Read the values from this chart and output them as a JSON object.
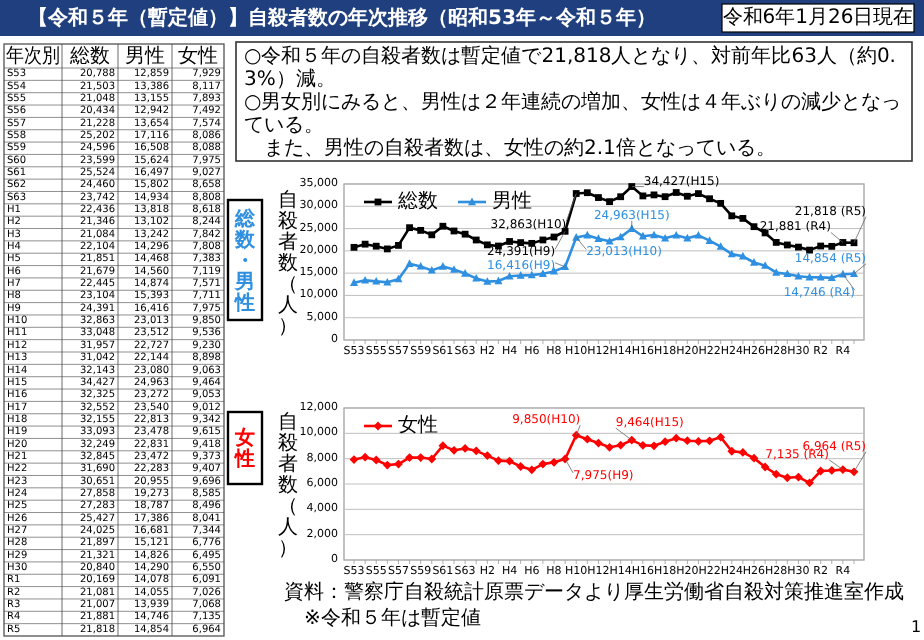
{
  "chart_data": [
    {
      "type": "other",
      "xlabel": "年次別",
      "categories": [
        "S53",
        "S54",
        "S55",
        "S56",
        "S57",
        "S58",
        "S59",
        "S60",
        "S61",
        "S62",
        "S63",
        "H1",
        "H2",
        "H3",
        "H4",
        "H5",
        "H6",
        "H7",
        "H8",
        "H9",
        "H10",
        "H11",
        "H12",
        "H13",
        "H14",
        "H15",
        "H16",
        "H17",
        "H18",
        "H19",
        "H20",
        "H21",
        "H22",
        "H23",
        "H24",
        "H25",
        "H26",
        "H27",
        "H28",
        "H29",
        "H30",
        "R1",
        "R2",
        "R3",
        "R4",
        "R5"
      ],
      "series": [
        {
          "name": "総数",
          "values": [
            20788,
            21503,
            21048,
            20434,
            21228,
            25202,
            24596,
            23599,
            25524,
            24460,
            23742,
            22436,
            21346,
            21084,
            22104,
            21851,
            21679,
            22445,
            23104,
            24391,
            32863,
            33048,
            31957,
            31042,
            32143,
            34427,
            32325,
            32552,
            32155,
            33093,
            32249,
            32845,
            31690,
            30651,
            27858,
            27283,
            25427,
            24025,
            21897,
            21321,
            20840,
            20169,
            21081,
            21007,
            21881,
            21818
          ],
          "value_labels": [
            "20,788",
            "21,503",
            "21,048",
            "20,434",
            "21,228",
            "25,202",
            "24,596",
            "23,599",
            "25,524",
            "24,460",
            "23,742",
            "22,436",
            "21,346",
            "21,084",
            "22,104",
            "21,851",
            "21,679",
            "22,445",
            "23,104",
            "24,391",
            "32,863",
            "33,048",
            "31,957",
            "31,042",
            "32,143",
            "34,427",
            "32,325",
            "32,552",
            "32,155",
            "33,093",
            "32,249",
            "32,845",
            "31,690",
            "30,651",
            "27,858",
            "27,283",
            "25,427",
            "24,025",
            "21,897",
            "21,321",
            "20,840",
            "20,169",
            "21,081",
            "21,007",
            "21,881",
            "21,818"
          ]
        },
        {
          "name": "男性",
          "values": [
            12859,
            13386,
            13155,
            12942,
            13654,
            17116,
            16508,
            15624,
            16497,
            15802,
            14934,
            13818,
            13102,
            13242,
            14296,
            14468,
            14560,
            14874,
            15393,
            16416,
            23013,
            23512,
            22727,
            22144,
            23080,
            24963,
            23272,
            23540,
            22813,
            23478,
            22831,
            23472,
            22283,
            20955,
            19273,
            18787,
            17386,
            16681,
            15121,
            14826,
            14290,
            14078,
            14055,
            13939,
            14746,
            14854
          ],
          "value_labels": [
            "12,859",
            "13,386",
            "13,155",
            "12,942",
            "13,654",
            "17,116",
            "16,508",
            "15,624",
            "16,497",
            "15,802",
            "14,934",
            "13,818",
            "13,102",
            "13,242",
            "14,296",
            "14,468",
            "14,560",
            "14,874",
            "15,393",
            "16,416",
            "23,013",
            "23,512",
            "22,727",
            "22,144",
            "23,080",
            "24,963",
            "23,272",
            "23,540",
            "22,813",
            "23,478",
            "22,831",
            "23,472",
            "22,283",
            "20,955",
            "19,273",
            "18,787",
            "17,386",
            "16,681",
            "15,121",
            "14,826",
            "14,290",
            "14,078",
            "14,055",
            "13,939",
            "14,746",
            "14,854"
          ]
        },
        {
          "name": "女性",
          "values": [
            7929,
            8117,
            7893,
            7492,
            7574,
            8086,
            8088,
            7975,
            9027,
            8658,
            8808,
            8618,
            8244,
            7842,
            7808,
            7383,
            7119,
            7571,
            7711,
            7975,
            9850,
            9536,
            9230,
            8898,
            9063,
            9464,
            9053,
            9012,
            9342,
            9615,
            9418,
            9373,
            9407,
            9696,
            8585,
            8496,
            8041,
            7344,
            6776,
            6495,
            6550,
            6091,
            7026,
            7068,
            7135,
            6964
          ],
          "value_labels": [
            "7,929",
            "8,117",
            "7,893",
            "7,492",
            "7,574",
            "8,086",
            "8,088",
            "7,975",
            "9,027",
            "8,658",
            "8,808",
            "8,618",
            "8,244",
            "7,842",
            "7,808",
            "7,383",
            "7,119",
            "7,571",
            "7,711",
            "7,975",
            "9,850",
            "9,536",
            "9,230",
            "8,898",
            "9,063",
            "9,464",
            "9,053",
            "9,012",
            "9,342",
            "9,615",
            "9,418",
            "9,373",
            "9,407",
            "9,696",
            "8,585",
            "8,496",
            "8,041",
            "7,344",
            "6,776",
            "6,495",
            "6,550",
            "6,091",
            "7,026",
            "7,068",
            "7,135",
            "6,964"
          ]
        }
      ]
    },
    {
      "type": "line",
      "title": "【令和５年（暫定値）】自殺者数の年次推移（昭和53年～令和５年）",
      "subtitle": "総数・男性",
      "ylabel": "自殺者数（人）",
      "categories": [
        "S53",
        null,
        "S55",
        null,
        "S57",
        null,
        "S59",
        null,
        "S61",
        null,
        "S63",
        null,
        "H2",
        null,
        "H4",
        null,
        "H6",
        null,
        "H8",
        null,
        "H10",
        null,
        "H12",
        null,
        "H14",
        null,
        "H16",
        null,
        "H18",
        null,
        "H20",
        null,
        "H22",
        null,
        "H24",
        null,
        "H26",
        null,
        "H28",
        null,
        "H30",
        null,
        "R2",
        null,
        "R4",
        null
      ],
      "series": [
        {
          "name": "総数",
          "color": "#000000",
          "marker": "square",
          "values": [
            20788,
            21503,
            21048,
            20434,
            21228,
            25202,
            24596,
            23599,
            25524,
            24460,
            23742,
            22436,
            21346,
            21084,
            22104,
            21851,
            21679,
            22445,
            23104,
            24391,
            32863,
            33048,
            31957,
            31042,
            32143,
            34427,
            32325,
            32552,
            32155,
            33093,
            32249,
            32845,
            31690,
            30651,
            27858,
            27283,
            25427,
            24025,
            21897,
            21321,
            20840,
            20169,
            21081,
            21007,
            21881,
            21818
          ]
        },
        {
          "name": "男性",
          "color": "#2f8fe0",
          "marker": "triangle",
          "values": [
            12859,
            13386,
            13155,
            12942,
            13654,
            17116,
            16508,
            15624,
            16497,
            15802,
            14934,
            13818,
            13102,
            13242,
            14296,
            14468,
            14560,
            14874,
            15393,
            16416,
            23013,
            23512,
            22727,
            22144,
            23080,
            24963,
            23272,
            23540,
            22813,
            23478,
            22831,
            23472,
            22283,
            20955,
            19273,
            18787,
            17386,
            16681,
            15121,
            14826,
            14290,
            14078,
            14055,
            13939,
            14746,
            14854
          ]
        }
      ],
      "ylim": [
        0,
        35000
      ],
      "yticks": [
        0,
        {
          "value": 5000,
          "label": "5,000"
        },
        {
          "value": 10000,
          "label": "10,000"
        },
        {
          "value": 15000,
          "label": "15,000"
        },
        {
          "value": 20000,
          "label": "20,000"
        },
        {
          "value": 25000,
          "label": "25,000"
        },
        {
          "value": 30000,
          "label": "30,000"
        },
        {
          "value": 35000,
          "label": "35,000"
        }
      ],
      "grid": "y",
      "legend": "top left",
      "annotations": [
        "32,863(H10)",
        "34,427(H15)",
        "24,391(H9)",
        "21,818 (R5)",
        "21,881 (R4)",
        "24,963(H15)",
        "16,416(H9)",
        "23,013(H10)",
        "14,854 (R5)",
        "14,746 (R4)",
        "令和6年1月26日現在",
        "○令和５年の自殺者数は暫定値で21,818人となり、対前年比63人（約0.3%）減。",
        "○男女別にみると、男性は２年連続の増加、女性は４年ぶりの減少となっている。",
        "　また、男性の自殺者数は、女性の約2.1倍となっている。"
      ]
    },
    {
      "type": "line",
      "subtitle": "女性",
      "ylabel": "自殺者数（人）",
      "categories": [
        "S53",
        null,
        "S55",
        null,
        "S57",
        null,
        "S59",
        null,
        "S61",
        null,
        "S63",
        null,
        "H2",
        null,
        "H4",
        null,
        "H6",
        null,
        "H8",
        null,
        "H10",
        null,
        "H12",
        null,
        "H14",
        null,
        "H16",
        null,
        "H18",
        null,
        "H20",
        null,
        "H22",
        null,
        "H24",
        null,
        "H26",
        null,
        "H28",
        null,
        "H30",
        null,
        "R2",
        null,
        "R4",
        null
      ],
      "series": [
        {
          "name": "女性",
          "color": "#ff0000",
          "marker": "diamond",
          "values": [
            7929,
            8117,
            7893,
            7492,
            7574,
            8086,
            8088,
            7975,
            9027,
            8658,
            8808,
            8618,
            8244,
            7842,
            7808,
            7383,
            7119,
            7571,
            7711,
            7975,
            9850,
            9536,
            9230,
            8898,
            9063,
            9464,
            9053,
            9012,
            9342,
            9615,
            9418,
            9373,
            9407,
            9696,
            8585,
            8496,
            8041,
            7344,
            6776,
            6495,
            6550,
            6091,
            7026,
            7068,
            7135,
            6964
          ]
        }
      ],
      "ylim": [
        0,
        12000
      ],
      "yticks": [
        0,
        {
          "value": 2000,
          "label": "2,000"
        },
        {
          "value": 4000,
          "label": "4,000"
        },
        {
          "value": 6000,
          "label": "6,000"
        },
        {
          "value": 8000,
          "label": "8,000"
        },
        {
          "value": 10000,
          "label": "10,000"
        },
        {
          "value": 12000,
          "label": "12,000"
        }
      ],
      "grid": "y",
      "legend": "top left",
      "annotations": [
        "9,850(H10)",
        "9,464(H15)",
        "7,975(H9)",
        "6,964 (R5)",
        "7,135 (R4)",
        "資料：警察庁自殺統計原票データより厚生労働省自殺対策推進室作成",
        "※令和５年は暫定値",
        "1"
      ]
    }
  ]
}
